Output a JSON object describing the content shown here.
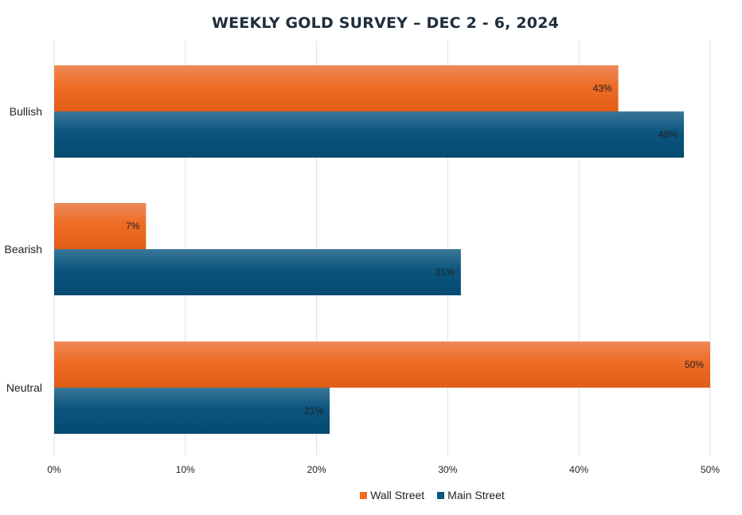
{
  "chart_data": {
    "type": "bar",
    "orientation": "horizontal",
    "title": "WEEKLY GOLD SURVEY – DEC 2 - 6, 2024",
    "categories": [
      "Bullish",
      "Bearish",
      "Neutral"
    ],
    "series": [
      {
        "name": "Wall Street",
        "values": [
          43,
          7,
          50
        ],
        "color": "#ee6c25"
      },
      {
        "name": "Main Street",
        "values": [
          48,
          31,
          21
        ],
        "color": "#0b557e"
      }
    ],
    "xlim": [
      0,
      50
    ],
    "xticks": [
      "0%",
      "10%",
      "20%",
      "30%",
      "40%",
      "50%"
    ],
    "value_suffix": "%",
    "grid": "vertical",
    "legend_position": "bottom"
  }
}
